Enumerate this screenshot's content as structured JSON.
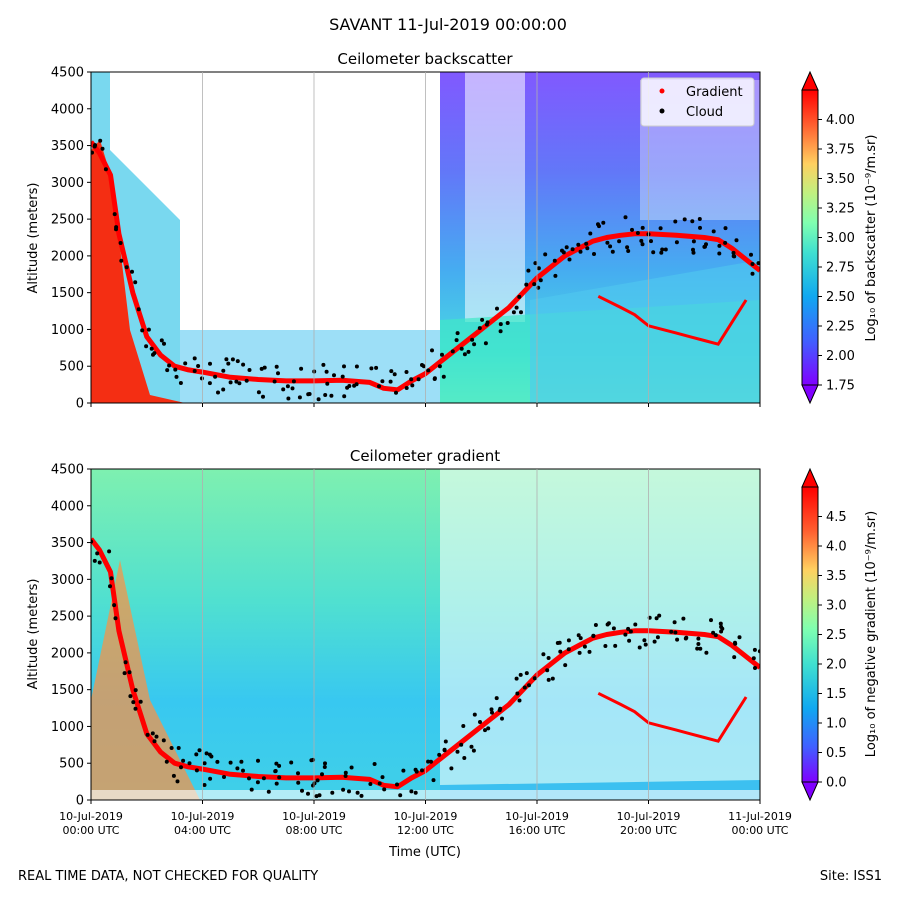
{
  "suptitle": "SAVANT 11-Jul-2019 00:00:00",
  "footer": {
    "left": "REAL TIME DATA, NOT CHECKED FOR QUALITY",
    "right": "Site: ISS1"
  },
  "chart_data": [
    {
      "type": "heatmap",
      "title": "Ceilometer backscatter",
      "xlabel": "",
      "ylabel": "Altitude (meters)",
      "ylim": [
        0,
        4500
      ],
      "xlim_hours": [
        0,
        24
      ],
      "yticks": [
        0,
        500,
        1000,
        1500,
        2000,
        2500,
        3000,
        3500,
        4000,
        4500
      ],
      "xtick_hours": [
        0,
        4,
        8,
        12,
        16,
        20,
        24
      ],
      "colorbar": {
        "label": "Log₁₀ of backscatter (10⁻⁹/m.sr)",
        "range": [
          1.75,
          4.25
        ],
        "ticks": [
          1.75,
          2.0,
          2.25,
          2.5,
          2.75,
          3.0,
          3.25,
          3.5,
          3.75,
          4.0
        ],
        "tick_labels": [
          "1.75",
          "2.00",
          "2.25",
          "2.50",
          "2.75",
          "3.00",
          "3.25",
          "3.50",
          "3.75",
          "4.00"
        ],
        "extend": "both"
      },
      "legend": {
        "placement": "top-right",
        "entries": [
          {
            "label": "Gradient",
            "color": "#ff0000"
          },
          {
            "label": "Cloud",
            "color": "#000000"
          }
        ]
      }
    },
    {
      "type": "heatmap",
      "title": "Ceilometer gradient",
      "xlabel": "Time (UTC)",
      "ylabel": "Altitude (meters)",
      "ylim": [
        0,
        4500
      ],
      "xlim_hours": [
        0,
        24
      ],
      "yticks": [
        0,
        500,
        1000,
        1500,
        2000,
        2500,
        3000,
        3500,
        4000,
        4500
      ],
      "xtick_hours": [
        0,
        4,
        8,
        12,
        16,
        20,
        24
      ],
      "xtick_labels": [
        [
          "10-Jul-2019",
          "00:00 UTC"
        ],
        [
          "10-Jul-2019",
          "04:00 UTC"
        ],
        [
          "10-Jul-2019",
          "08:00 UTC"
        ],
        [
          "10-Jul-2019",
          "12:00 UTC"
        ],
        [
          "10-Jul-2019",
          "16:00 UTC"
        ],
        [
          "10-Jul-2019",
          "20:00 UTC"
        ],
        [
          "11-Jul-2019",
          "00:00 UTC"
        ]
      ],
      "colorbar": {
        "label": "Log₁₀ of negative gradient (10⁻⁹/m.sr)",
        "range": [
          0.0,
          5.0
        ],
        "ticks": [
          0.0,
          0.5,
          1.0,
          1.5,
          2.0,
          2.5,
          3.0,
          3.5,
          4.0,
          4.5
        ],
        "tick_labels": [
          "0.0",
          "0.5",
          "1.0",
          "1.5",
          "2.0",
          "2.5",
          "3.0",
          "3.5",
          "4.0",
          "4.5"
        ],
        "extend": "both"
      }
    }
  ],
  "boundary_layer_height": {
    "hours": [
      0,
      0.3,
      0.7,
      1.0,
      1.5,
      2.0,
      2.5,
      3.0,
      3.5,
      4.0,
      5.0,
      6.0,
      7.0,
      8.0,
      9.0,
      10.0,
      10.5,
      11.0,
      11.5,
      12.0,
      12.5,
      13.0,
      13.5,
      14.0,
      14.5,
      15.0,
      15.5,
      16.0,
      16.5,
      17.0,
      17.5,
      18.0,
      18.5,
      19.0,
      19.5,
      20.0,
      21.0,
      22.0,
      22.5,
      23.0,
      23.5,
      24.0
    ],
    "meters": [
      3550,
      3400,
      3100,
      2300,
      1500,
      900,
      650,
      500,
      450,
      420,
      350,
      320,
      300,
      300,
      310,
      280,
      200,
      180,
      300,
      400,
      550,
      700,
      850,
      1000,
      1150,
      1300,
      1500,
      1700,
      1850,
      2000,
      2100,
      2200,
      2250,
      2280,
      2300,
      2300,
      2280,
      2250,
      2220,
      2100,
      1950,
      1800
    ]
  },
  "secondary_layer": {
    "hours": [
      18.2,
      19.0,
      19.5,
      20.0,
      20.5,
      21.0,
      21.5,
      22.0,
      22.5,
      23.0,
      23.5
    ],
    "meters": [
      1450,
      1300,
      1200,
      1050,
      1000,
      950,
      900,
      850,
      800,
      1100,
      1400
    ]
  }
}
